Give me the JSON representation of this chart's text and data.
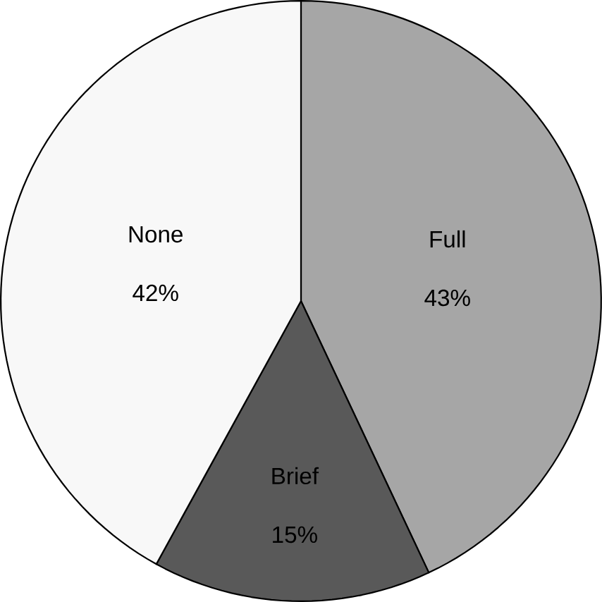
{
  "chart_data": {
    "type": "pie",
    "categories": [
      "Full",
      "Brief",
      "None"
    ],
    "values": [
      43,
      15,
      42
    ],
    "value_labels": [
      "43%",
      "15%",
      "42%"
    ],
    "colors": [
      "#a6a6a6",
      "#595959",
      "#f8f8f8"
    ]
  }
}
